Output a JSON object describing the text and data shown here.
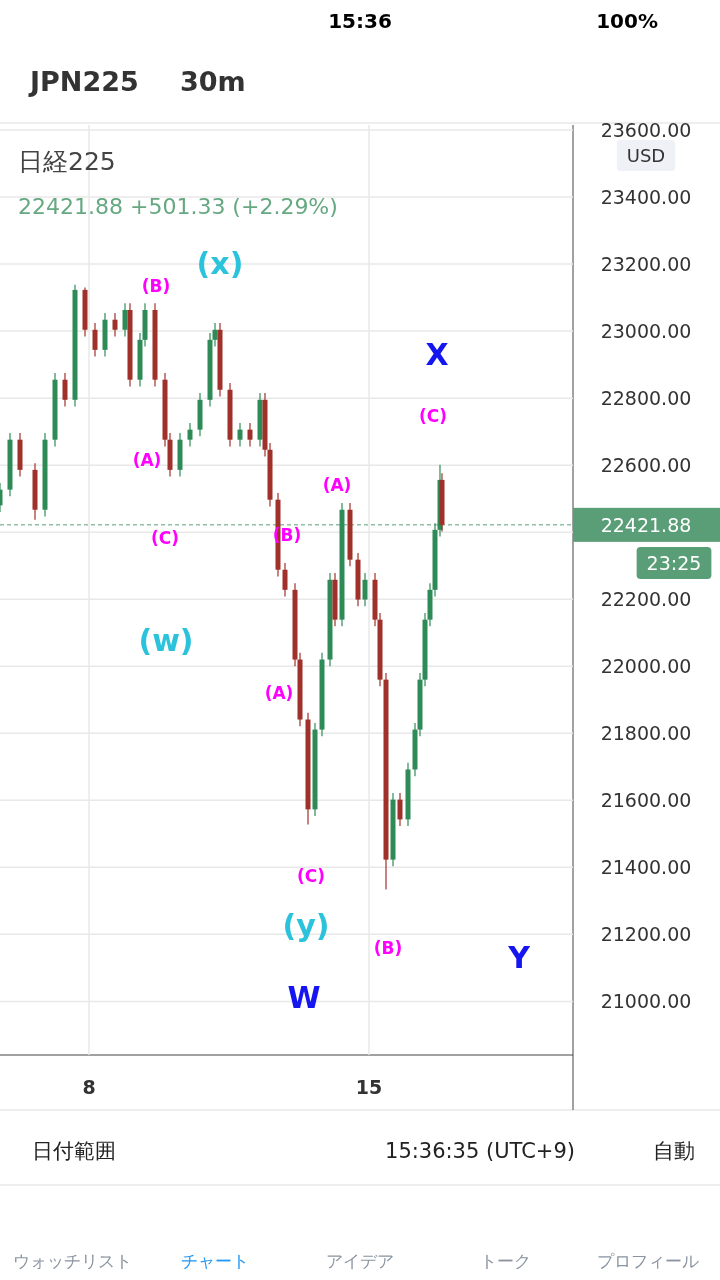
{
  "chart_data": {
    "type": "candlestick",
    "title": "JPN225",
    "subtitle": "30m",
    "x": [
      5.775,
      6.025,
      6.275,
      6.65,
      6.9,
      7.15,
      7.4,
      7.65,
      7.9,
      8.15,
      8.4,
      8.65,
      8.9,
      9.025,
      9.275,
      9.4,
      9.65,
      9.9,
      10.025,
      10.275,
      10.525,
      10.775,
      11.025,
      11.15,
      11.275,
      11.525,
      11.775,
      12.025,
      12.275,
      12.4,
      12.525,
      12.725,
      12.9,
      13.15,
      13.275,
      13.475,
      13.65,
      13.825,
      14.025,
      14.15,
      14.325,
      14.525,
      14.725,
      14.9,
      15.15,
      15.275,
      15.425,
      15.6,
      15.775,
      15.975,
      16.15,
      16.275,
      16.4,
      16.525,
      16.65,
      16.775,
      16.825
    ],
    "ohlc": [
      [
        22480,
        22547,
        22460,
        22527
      ],
      [
        22527,
        22696,
        22507,
        22676
      ],
      [
        22676,
        22696,
        22566,
        22586
      ],
      [
        22586,
        22606,
        22437,
        22467
      ],
      [
        22467,
        22696,
        22447,
        22676
      ],
      [
        22676,
        22875,
        22656,
        22855
      ],
      [
        22855,
        22875,
        22775,
        22795
      ],
      [
        22795,
        23138,
        22775,
        23123
      ],
      [
        23123,
        23130,
        22984,
        23004
      ],
      [
        23004,
        23024,
        22924,
        22944
      ],
      [
        22944,
        23054,
        22924,
        23034
      ],
      [
        23034,
        23054,
        22984,
        23004
      ],
      [
        23004,
        23083,
        22984,
        23063
      ],
      [
        23063,
        23083,
        22835,
        22855
      ],
      [
        22855,
        22994,
        22835,
        22974
      ],
      [
        22974,
        23083,
        22954,
        23063
      ],
      [
        23063,
        23083,
        22835,
        22855
      ],
      [
        22855,
        22875,
        22656,
        22676
      ],
      [
        22676,
        22696,
        22566,
        22586
      ],
      [
        22586,
        22696,
        22566,
        22676
      ],
      [
        22676,
        22726,
        22656,
        22706
      ],
      [
        22706,
        22815,
        22686,
        22795
      ],
      [
        22795,
        22994,
        22775,
        22974
      ],
      [
        22974,
        23024,
        22954,
        23004
      ],
      [
        23004,
        23024,
        22805,
        22825
      ],
      [
        22825,
        22845,
        22656,
        22676
      ],
      [
        22676,
        22726,
        22656,
        22706
      ],
      [
        22706,
        22726,
        22656,
        22676
      ],
      [
        22676,
        22815,
        22656,
        22795
      ],
      [
        22795,
        22815,
        22626,
        22646
      ],
      [
        22646,
        22666,
        22477,
        22497
      ],
      [
        22497,
        22517,
        22268,
        22288
      ],
      [
        22288,
        22308,
        22208,
        22228
      ],
      [
        22228,
        22248,
        22000,
        22020
      ],
      [
        22020,
        22040,
        21821,
        21841
      ],
      [
        21841,
        21861,
        21528,
        21573
      ],
      [
        21573,
        21831,
        21553,
        21811
      ],
      [
        21811,
        22040,
        21791,
        22020
      ],
      [
        22020,
        22278,
        22000,
        22258
      ],
      [
        22258,
        22278,
        22119,
        22139
      ],
      [
        22139,
        22487,
        22119,
        22467
      ],
      [
        22467,
        22487,
        22298,
        22318
      ],
      [
        22318,
        22338,
        22179,
        22199
      ],
      [
        22199,
        22278,
        22179,
        22258
      ],
      [
        22258,
        22278,
        22119,
        22139
      ],
      [
        22139,
        22159,
        21940,
        21960
      ],
      [
        21960,
        21980,
        21334,
        21423
      ],
      [
        21423,
        21622,
        21403,
        21602
      ],
      [
        21602,
        21622,
        21523,
        21543
      ],
      [
        21543,
        21712,
        21523,
        21692
      ],
      [
        21692,
        21831,
        21672,
        21811
      ],
      [
        21811,
        21980,
        21791,
        21960
      ],
      [
        21960,
        22159,
        21940,
        22139
      ],
      [
        22139,
        22248,
        22119,
        22228
      ],
      [
        22228,
        22427,
        22208,
        22407
      ],
      [
        22407,
        22601,
        22387,
        22556
      ],
      [
        22556,
        22576,
        22402,
        22422
      ]
    ],
    "colors": [
      "#2e8b57",
      "#2e8b57",
      "#a0302a",
      "#a0302a",
      "#2e8b57",
      "#2e8b57",
      "#a0302a",
      "#2e8b57",
      "#a0302a",
      "#a0302a",
      "#2e8b57",
      "#a0302a",
      "#2e8b57",
      "#a0302a",
      "#2e8b57",
      "#2e8b57",
      "#a0302a",
      "#a0302a",
      "#a0302a",
      "#2e8b57",
      "#2e8b57",
      "#2e8b57",
      "#2e8b57",
      "#2e8b57",
      "#a0302a",
      "#a0302a",
      "#2e8b57",
      "#a0302a",
      "#2e8b57",
      "#a0302a",
      "#a0302a",
      "#a0302a",
      "#a0302a",
      "#a0302a",
      "#a0302a",
      "#a0302a",
      "#2e8b57",
      "#2e8b57",
      "#2e8b57",
      "#a0302a",
      "#2e8b57",
      "#a0302a",
      "#a0302a",
      "#2e8b57",
      "#a0302a",
      "#a0302a",
      "#a0302a",
      "#2e8b57",
      "#a0302a",
      "#2e8b57",
      "#2e8b57",
      "#2e8b57",
      "#2e8b57",
      "#2e8b57",
      "#2e8b57",
      "#2e8b57",
      "#a0302a"
    ],
    "xlim": [
      5.775,
      20.1
    ],
    "xticks": [
      8,
      15
    ],
    "ylim": [
      20840,
      23615
    ],
    "yticks": [
      {
        "value": 21000,
        "label": "21000.00"
      },
      {
        "value": 21200,
        "label": "21200.00"
      },
      {
        "value": 21400,
        "label": "21400.00"
      },
      {
        "value": 21600,
        "label": "21600.00"
      },
      {
        "value": 21800,
        "label": "21800.00"
      },
      {
        "value": 22000,
        "label": "22000.00"
      },
      {
        "value": 22200,
        "label": "22200.00"
      },
      {
        "value": 22400,
        "label": null
      },
      {
        "value": 22600,
        "label": "22600.00"
      },
      {
        "value": 22800,
        "label": "22800.00"
      },
      {
        "value": 23000,
        "label": "23000.00"
      },
      {
        "value": 23200,
        "label": "23200.00"
      },
      {
        "value": 23400,
        "label": "23400.00"
      },
      {
        "value": 23600,
        "label": "23600.00"
      }
    ],
    "grid": true,
    "ref_lines": [
      {
        "axis": "y",
        "value": 22421.88,
        "label": "22421.88",
        "color": "#5a9e78",
        "line_style": "dashed"
      }
    ],
    "annotations": [
      "15:36",
      "100%",
      "日経225",
      "22421.88 +501.33 (+2.29%)",
      "USD",
      "23:25",
      "日付範囲",
      "15:36:35 (UTC+9)",
      "自動",
      "ウォッチリスト",
      "チャート",
      "アイデア",
      "トーク",
      "プロフィール",
      "(x)",
      "(B)",
      "X",
      "(C)",
      "(A)",
      "(A)",
      "(C)",
      "(B)",
      "(w)",
      "(A)",
      "(C)",
      "(y)",
      "(B)",
      "W",
      "Y"
    ]
  }
}
